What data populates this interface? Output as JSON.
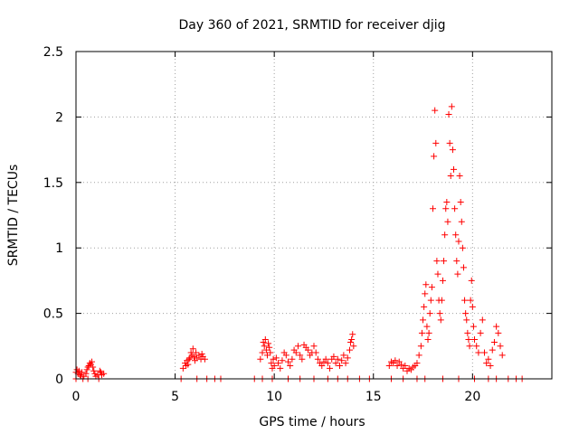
{
  "chart_data": {
    "type": "scatter",
    "title": "Day 360 of 2021, SRMTID for receiver djig",
    "xlabel": "GPS time / hours",
    "ylabel": "SRMTID / TECUs",
    "xlim": [
      0,
      24
    ],
    "ylim": [
      0,
      2.5
    ],
    "x_ticks": [
      0,
      5,
      10,
      15,
      20
    ],
    "x_tick_labels": [
      "0",
      "5",
      "10",
      "15",
      "20"
    ],
    "y_ticks": [
      0,
      0.5,
      1,
      1.5,
      2,
      2.5
    ],
    "y_tick_labels": [
      "0",
      "0.5",
      "1",
      "1.5",
      "2",
      "2.5"
    ],
    "grid": true,
    "marker": "+",
    "color": "#ff0000",
    "series": [
      {
        "name": "SRMTID",
        "points": [
          [
            0.0,
            0.05
          ],
          [
            0.05,
            0.07
          ],
          [
            0.1,
            0.04
          ],
          [
            0.15,
            0.06
          ],
          [
            0.2,
            0.03
          ],
          [
            0.25,
            0.02
          ],
          [
            0.3,
            0.05
          ],
          [
            0.4,
            0.02
          ],
          [
            0.5,
            0.04
          ],
          [
            0.55,
            0.07
          ],
          [
            0.6,
            0.09
          ],
          [
            0.65,
            0.1
          ],
          [
            0.7,
            0.12
          ],
          [
            0.75,
            0.11
          ],
          [
            0.8,
            0.13
          ],
          [
            0.85,
            0.09
          ],
          [
            0.9,
            0.06
          ],
          [
            0.95,
            0.04
          ],
          [
            1.0,
            0.02
          ],
          [
            1.1,
            0.03
          ],
          [
            1.2,
            0.06
          ],
          [
            1.25,
            0.05
          ],
          [
            1.3,
            0.03
          ],
          [
            1.4,
            0.04
          ],
          [
            5.4,
            0.08
          ],
          [
            5.5,
            0.12
          ],
          [
            5.55,
            0.1
          ],
          [
            5.6,
            0.14
          ],
          [
            5.65,
            0.11
          ],
          [
            5.7,
            0.15
          ],
          [
            5.75,
            0.16
          ],
          [
            5.8,
            0.2
          ],
          [
            5.85,
            0.18
          ],
          [
            5.9,
            0.23
          ],
          [
            5.95,
            0.17
          ],
          [
            6.0,
            0.14
          ],
          [
            6.05,
            0.2
          ],
          [
            6.1,
            0.16
          ],
          [
            6.2,
            0.18
          ],
          [
            6.3,
            0.15
          ],
          [
            6.35,
            0.19
          ],
          [
            6.4,
            0.17
          ],
          [
            6.5,
            0.15
          ],
          [
            9.3,
            0.15
          ],
          [
            9.4,
            0.2
          ],
          [
            9.45,
            0.28
          ],
          [
            9.5,
            0.25
          ],
          [
            9.55,
            0.3
          ],
          [
            9.6,
            0.22
          ],
          [
            9.65,
            0.18
          ],
          [
            9.7,
            0.27
          ],
          [
            9.75,
            0.24
          ],
          [
            9.8,
            0.2
          ],
          [
            9.85,
            0.12
          ],
          [
            9.9,
            0.08
          ],
          [
            9.95,
            0.15
          ],
          [
            10.0,
            0.1
          ],
          [
            10.1,
            0.16
          ],
          [
            10.2,
            0.12
          ],
          [
            10.3,
            0.08
          ],
          [
            10.4,
            0.14
          ],
          [
            10.5,
            0.2
          ],
          [
            10.6,
            0.18
          ],
          [
            10.7,
            0.13
          ],
          [
            10.8,
            0.1
          ],
          [
            10.9,
            0.15
          ],
          [
            11.0,
            0.22
          ],
          [
            11.1,
            0.2
          ],
          [
            11.2,
            0.25
          ],
          [
            11.3,
            0.18
          ],
          [
            11.4,
            0.15
          ],
          [
            11.5,
            0.26
          ],
          [
            11.6,
            0.24
          ],
          [
            11.7,
            0.22
          ],
          [
            11.8,
            0.18
          ],
          [
            11.9,
            0.2
          ],
          [
            12.0,
            0.25
          ],
          [
            12.1,
            0.2
          ],
          [
            12.2,
            0.15
          ],
          [
            12.3,
            0.12
          ],
          [
            12.4,
            0.1
          ],
          [
            12.5,
            0.13
          ],
          [
            12.6,
            0.15
          ],
          [
            12.7,
            0.12
          ],
          [
            12.8,
            0.08
          ],
          [
            12.9,
            0.15
          ],
          [
            13.0,
            0.17
          ],
          [
            13.1,
            0.12
          ],
          [
            13.2,
            0.15
          ],
          [
            13.3,
            0.1
          ],
          [
            13.4,
            0.14
          ],
          [
            13.5,
            0.18
          ],
          [
            13.6,
            0.12
          ],
          [
            13.7,
            0.16
          ],
          [
            13.8,
            0.22
          ],
          [
            13.85,
            0.28
          ],
          [
            13.9,
            0.3
          ],
          [
            13.95,
            0.34
          ],
          [
            14.0,
            0.25
          ],
          [
            15.8,
            0.1
          ],
          [
            15.9,
            0.13
          ],
          [
            16.0,
            0.12
          ],
          [
            16.1,
            0.14
          ],
          [
            16.2,
            0.1
          ],
          [
            16.3,
            0.13
          ],
          [
            16.4,
            0.11
          ],
          [
            16.5,
            0.08
          ],
          [
            16.6,
            0.1
          ],
          [
            16.7,
            0.06
          ],
          [
            16.8,
            0.08
          ],
          [
            16.9,
            0.07
          ],
          [
            17.0,
            0.09
          ],
          [
            17.1,
            0.1
          ],
          [
            17.2,
            0.12
          ],
          [
            17.3,
            0.18
          ],
          [
            17.4,
            0.25
          ],
          [
            17.45,
            0.35
          ],
          [
            17.5,
            0.45
          ],
          [
            17.55,
            0.55
          ],
          [
            17.6,
            0.65
          ],
          [
            17.65,
            0.72
          ],
          [
            17.7,
            0.4
          ],
          [
            17.75,
            0.3
          ],
          [
            17.8,
            0.35
          ],
          [
            17.85,
            0.5
          ],
          [
            17.9,
            0.6
          ],
          [
            17.95,
            0.7
          ],
          [
            18.0,
            1.3
          ],
          [
            18.05,
            1.7
          ],
          [
            18.1,
            2.05
          ],
          [
            18.15,
            1.8
          ],
          [
            18.2,
            0.9
          ],
          [
            18.25,
            0.8
          ],
          [
            18.3,
            0.6
          ],
          [
            18.35,
            0.5
          ],
          [
            18.4,
            0.45
          ],
          [
            18.45,
            0.6
          ],
          [
            18.5,
            0.75
          ],
          [
            18.55,
            0.9
          ],
          [
            18.6,
            1.1
          ],
          [
            18.65,
            1.3
          ],
          [
            18.7,
            1.35
          ],
          [
            18.75,
            1.2
          ],
          [
            18.8,
            2.02
          ],
          [
            18.85,
            1.8
          ],
          [
            18.9,
            1.55
          ],
          [
            18.95,
            2.08
          ],
          [
            19.0,
            1.75
          ],
          [
            19.05,
            1.6
          ],
          [
            19.1,
            1.3
          ],
          [
            19.15,
            1.1
          ],
          [
            19.2,
            0.9
          ],
          [
            19.25,
            0.8
          ],
          [
            19.3,
            1.05
          ],
          [
            19.35,
            1.55
          ],
          [
            19.4,
            1.35
          ],
          [
            19.45,
            1.2
          ],
          [
            19.5,
            1.0
          ],
          [
            19.55,
            0.85
          ],
          [
            19.6,
            0.6
          ],
          [
            19.65,
            0.5
          ],
          [
            19.7,
            0.45
          ],
          [
            19.75,
            0.35
          ],
          [
            19.8,
            0.3
          ],
          [
            19.85,
            0.25
          ],
          [
            19.9,
            0.6
          ],
          [
            19.95,
            0.75
          ],
          [
            20.0,
            0.55
          ],
          [
            20.05,
            0.4
          ],
          [
            20.1,
            0.3
          ],
          [
            20.2,
            0.25
          ],
          [
            20.3,
            0.2
          ],
          [
            20.4,
            0.35
          ],
          [
            20.5,
            0.45
          ],
          [
            20.6,
            0.2
          ],
          [
            20.7,
            0.12
          ],
          [
            20.8,
            0.15
          ],
          [
            20.9,
            0.1
          ],
          [
            21.0,
            0.22
          ],
          [
            21.1,
            0.28
          ],
          [
            21.2,
            0.4
          ],
          [
            21.3,
            0.35
          ],
          [
            21.4,
            0.25
          ],
          [
            21.5,
            0.18
          ],
          [
            0.0,
            0.0
          ],
          [
            0.35,
            0.0
          ],
          [
            0.6,
            0.0
          ],
          [
            1.15,
            0.0
          ],
          [
            5.3,
            0.0
          ],
          [
            6.1,
            0.0
          ],
          [
            6.6,
            0.0
          ],
          [
            7.0,
            0.0
          ],
          [
            7.3,
            0.0
          ],
          [
            9.0,
            0.0
          ],
          [
            9.4,
            0.0
          ],
          [
            9.9,
            0.0
          ],
          [
            10.7,
            0.0
          ],
          [
            11.3,
            0.0
          ],
          [
            12.0,
            0.0
          ],
          [
            12.7,
            0.0
          ],
          [
            13.2,
            0.0
          ],
          [
            13.7,
            0.0
          ],
          [
            14.3,
            0.0
          ],
          [
            14.8,
            0.0
          ],
          [
            15.9,
            0.0
          ],
          [
            16.5,
            0.0
          ],
          [
            17.2,
            0.0
          ],
          [
            17.6,
            0.0
          ],
          [
            18.5,
            0.0
          ],
          [
            19.3,
            0.0
          ],
          [
            20.1,
            0.0
          ],
          [
            20.8,
            0.0
          ],
          [
            21.2,
            0.0
          ],
          [
            21.8,
            0.0
          ],
          [
            22.2,
            0.0
          ],
          [
            22.5,
            0.0
          ]
        ]
      }
    ]
  }
}
